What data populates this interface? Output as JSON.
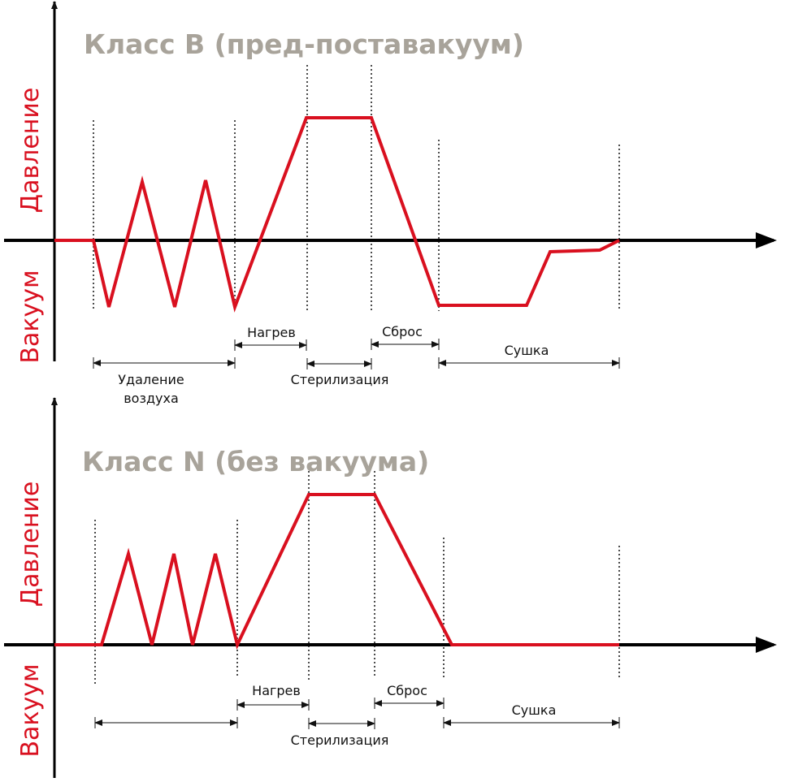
{
  "colors": {
    "curve": "#d9101f",
    "title": "#a8a39a",
    "axis_label": "#d9101f",
    "axis": "#000000"
  },
  "diagrams": [
    {
      "title": "Класс  B (пред-поставакуум)",
      "y_positive_label": "Давление",
      "y_negative_label": "Вакуум",
      "phases": {
        "air_removal_line1": "Удаление",
        "air_removal_line2": "воздуха",
        "heating": "Нагрев",
        "sterilization": "Стерилизация",
        "release": "Сброс",
        "drying": "Сушка"
      }
    },
    {
      "title": "Класс  N (без вакуума)",
      "y_positive_label": "Давление",
      "y_negative_label": "Вакуум",
      "phases": {
        "heating": "Нагрев",
        "sterilization": "Стерилизация",
        "release": "Сброс",
        "drying": "Сушка"
      }
    }
  ]
}
